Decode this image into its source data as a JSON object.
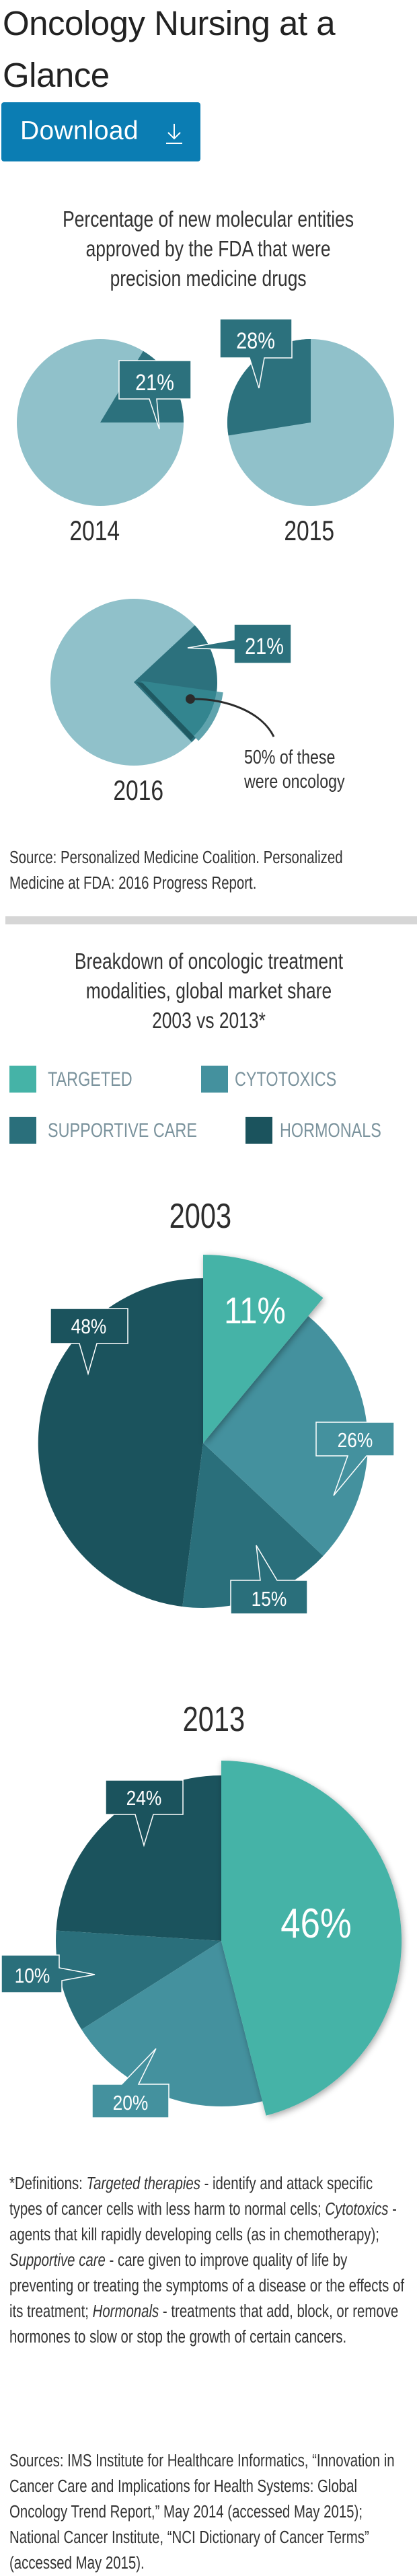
{
  "header": {
    "title": "Oncology Nursing at a Glance",
    "download_label": "Download",
    "download_icon": "download-arrow-icon",
    "button_color": "#0b7db3"
  },
  "section1": {
    "title_lines": [
      "Percentage of new molecular entities",
      "approved by the FDA that were",
      "precision medicine drugs"
    ],
    "pies": [
      {
        "year": "2014",
        "label": "21%"
      },
      {
        "year": "2015",
        "label": "28%"
      },
      {
        "year": "2016",
        "label": "21%"
      }
    ],
    "note_lines": [
      "50% of these",
      "were oncology"
    ],
    "source_lines": [
      "Source: Personalized Medicine Coalition. Personalized",
      "Medicine at FDA: 2016 Progress Report."
    ]
  },
  "section2": {
    "title_lines": [
      "Breakdown of oncologic treatment",
      "modalities, global market share",
      "2003 vs 2013*"
    ],
    "legend": [
      {
        "label": "TARGETED",
        "color": "#45b3a7"
      },
      {
        "label": "CYTOTOXICS",
        "color": "#44919e"
      },
      {
        "label": "SUPPORTIVE CARE",
        "color": "#2a6f7b"
      },
      {
        "label": "HORMONALS",
        "color": "#1b535d"
      }
    ],
    "pies": [
      {
        "year": "2003",
        "labels": [
          "11%",
          "26%",
          "15%",
          "48%"
        ]
      },
      {
        "year": "2013",
        "labels": [
          "46%",
          "20%",
          "10%",
          "24%"
        ]
      }
    ]
  },
  "definitions": {
    "lead": "*Definitions: ",
    "items": [
      {
        "term": "Targeted therapies",
        "text": " - identify and attack specific types of cancer cells with less harm to normal cells; "
      },
      {
        "term": "Cytotoxics",
        "text": " - agents that kill rapidly developing cells (as in chemotherapy); "
      },
      {
        "term": "Supportive care",
        "text": " - care given to improve quality of life by preventing or treating the symptoms of a disease or the effects of its treatment; "
      },
      {
        "term": "Hormonals",
        "text": " - treatments that add, block, or remove hormones to slow or stop the growth of certain cancers."
      }
    ]
  },
  "sources": {
    "text": "Sources: IMS Institute for Healthcare Informatics, “Innovation in Cancer Care and Implications for Health Systems: Global Oncology Trend Report,” May 2014 (accessed May 2015); National Cancer Institute, “NCI Dictionary of Cancer Terms” (accessed May 2015)."
  },
  "colors": {
    "pie_light": "#90c1ca",
    "pie_dark": "#2c717d",
    "pie_mid": "#33858f",
    "targeted": "#45b3a7",
    "cytotoxics": "#44919e",
    "supportive_care": "#2a6f7b",
    "hormonals": "#1b535d",
    "separator": "#d6d6d6",
    "legend_text": "#7b939d"
  },
  "chart_data": [
    {
      "type": "pie",
      "title": "Percentage of new molecular entities approved by the FDA that were precision medicine drugs",
      "categories": [
        "2014",
        "2015",
        "2016"
      ],
      "series": [
        {
          "name": "Precision medicine share (%)",
          "values": [
            21,
            28,
            21
          ]
        }
      ],
      "annotations": [
        "2016: 50% of these were oncology"
      ],
      "source": "Personalized Medicine Coalition. Personalized Medicine at FDA: 2016 Progress Report."
    },
    {
      "type": "pie",
      "title": "Breakdown of oncologic treatment modalities, global market share 2003",
      "categories": [
        "Targeted",
        "Cytotoxics",
        "Supportive care",
        "Hormonals"
      ],
      "values": [
        11,
        26,
        15,
        48
      ],
      "legend_position": "top"
    },
    {
      "type": "pie",
      "title": "Breakdown of oncologic treatment modalities, global market share 2013",
      "categories": [
        "Targeted",
        "Cytotoxics",
        "Supportive care",
        "Hormonals"
      ],
      "values": [
        46,
        20,
        10,
        24
      ],
      "legend_position": "top"
    }
  ]
}
